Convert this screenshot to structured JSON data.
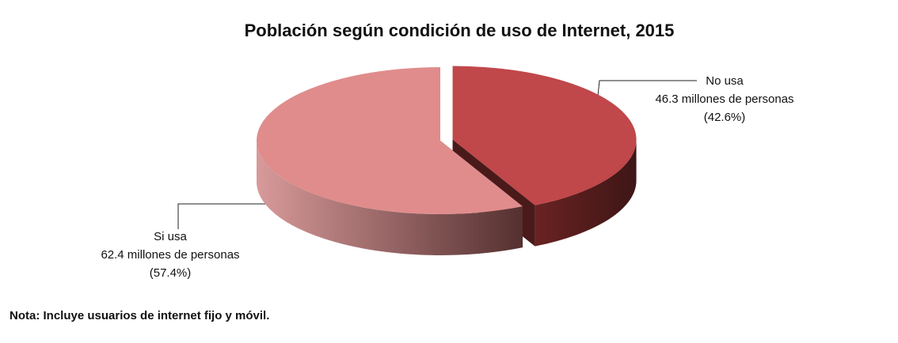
{
  "chart_data": {
    "type": "pie3d",
    "title": "Población según condición de uso de Internet, 2015",
    "categories": [
      "No usa",
      "Si usa"
    ],
    "values": [
      42.6,
      57.4
    ],
    "value_labels": [
      "(42.6%)",
      "(57.4%)"
    ],
    "people_millions": [
      46.3,
      62.4
    ],
    "people_labels": [
      "46.3 millones de personas",
      "62.4 millones de personas"
    ],
    "colors": [
      "#c0474a",
      "#e08c8c"
    ],
    "note": "Nota: Incluye usuarios de internet fijo y móvil."
  }
}
